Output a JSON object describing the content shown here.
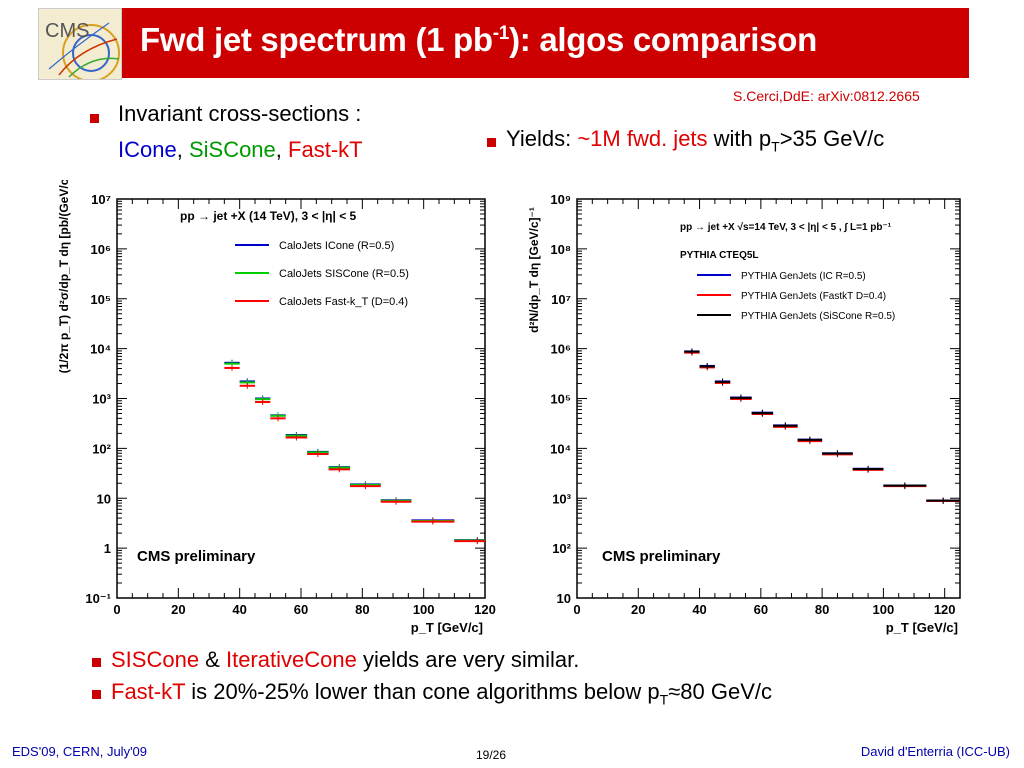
{
  "header": {
    "title_main": "Fwd jet spectrum (1 pb",
    "title_sup": "-1",
    "title_end": "): algos comparison",
    "logo_text": "CMS",
    "reference": "S.Cerci,DdE: arXiv:0812.2665"
  },
  "bullets": {
    "left_line1": "Invariant cross-sections :",
    "left_icone": "ICone",
    "left_sep1": ", ",
    "left_siscone": "SiSCone",
    "left_sep2": ", ",
    "left_fastkt": "Fast-kT",
    "yields_prefix": "Yields: ",
    "yields_red": "~1M fwd. jets",
    "yields_mid": " with p",
    "yields_sub": "T",
    "yields_end": ">35 GeV/c",
    "b1_red1": "SISCone",
    "b1_mid": " & ",
    "b1_red2": "IterativeCone",
    "b1_end": " yields are very similar.",
    "b2_red": "Fast-kT",
    "b2_mid": " is 20%-25% lower than cone algorithms below p",
    "b2_sub": "T",
    "b2_end": "≈80 GeV/c"
  },
  "footer": {
    "left": "EDS'09, CERN, July'09",
    "center": "19/26",
    "right": "David d'Enterria (ICC-UB)"
  },
  "colors": {
    "title_bg": "#cc0000",
    "accent_red": "#e00000",
    "icone_blue": "#0000cc",
    "siscone_green": "#009900",
    "footer_blue": "#0000aa"
  },
  "chart_data": [
    {
      "type": "scatter",
      "log_y": true,
      "grid": false,
      "legend_position": "top-right",
      "title": "pp → jet +X (14 TeV), 3 < |η| < 5",
      "xlabel": "p_T [GeV/c]",
      "ylabel": "(1/2π p_T) d²σ/dp_T dη [pb/(GeV/c)²]",
      "annotation": "CMS preliminary",
      "xlim": [
        0,
        120
      ],
      "ylim": [
        0.1,
        10000000
      ],
      "x_ticks": [
        "0",
        "20",
        "40",
        "60",
        "80",
        "100",
        "120"
      ],
      "y_ticks": [
        "10⁻¹",
        "1",
        "10",
        "10²",
        "10³",
        "10⁴",
        "10⁵",
        "10⁶",
        "10⁷"
      ],
      "bin_edges": [
        [
          35,
          40
        ],
        [
          40,
          45
        ],
        [
          45,
          50
        ],
        [
          50,
          55
        ],
        [
          55,
          62
        ],
        [
          62,
          69
        ],
        [
          69,
          76
        ],
        [
          76,
          86
        ],
        [
          86,
          96
        ],
        [
          96,
          110
        ],
        [
          110,
          125
        ]
      ],
      "series": [
        {
          "name": "CaloJets ICone (R=0.5)",
          "color": "#0000cc",
          "values": [
            5200,
            2200,
            1000,
            460,
            185,
            85,
            42,
            19,
            9.1,
            3.6,
            1.45
          ]
        },
        {
          "name": "CaloJets SISCone (R=0.5)",
          "color": "#00cc00",
          "values": [
            5000,
            2100,
            970,
            450,
            180,
            83,
            41,
            18.5,
            8.9,
            3.5,
            1.42
          ]
        },
        {
          "name": "CaloJets Fast-k_T (D=0.4)",
          "color": "#ff0000",
          "values": [
            4100,
            1800,
            850,
            400,
            165,
            77,
            38,
            17.5,
            8.5,
            3.4,
            1.38
          ]
        }
      ]
    },
    {
      "type": "scatter",
      "log_y": true,
      "grid": false,
      "legend_position": "top-right",
      "title": "pp → jet +X  √s=14 TeV, 3 < |η| < 5 , ∫ L=1 pb⁻¹",
      "subtitle": "PYTHIA CTEQ5L",
      "xlabel": "p_T [GeV/c]",
      "ylabel": "d²N/dp_T dη [GeV/c]⁻¹",
      "annotation": "CMS preliminary",
      "xlim": [
        0,
        125
      ],
      "ylim": [
        10,
        1000000000
      ],
      "x_ticks": [
        "0",
        "20",
        "40",
        "60",
        "80",
        "100",
        "120"
      ],
      "y_ticks": [
        "10",
        "10²",
        "10³",
        "10⁴",
        "10⁵",
        "10⁶",
        "10⁷",
        "10⁸",
        "10⁹"
      ],
      "bin_edges": [
        [
          35,
          40
        ],
        [
          40,
          45
        ],
        [
          45,
          50
        ],
        [
          50,
          57
        ],
        [
          57,
          64
        ],
        [
          64,
          72
        ],
        [
          72,
          80
        ],
        [
          80,
          90
        ],
        [
          90,
          100
        ],
        [
          100,
          114
        ],
        [
          114,
          125
        ]
      ],
      "series": [
        {
          "name": "PYTHIA GenJets (IC R=0.5)",
          "color": "#0000cc",
          "values": [
            880000,
            450000,
            220000,
            105000,
            52000,
            29000,
            15000,
            8000,
            3900,
            1800,
            900
          ]
        },
        {
          "name": "PYTHIA GenJets (FastkT D=0.4)",
          "color": "#ff0000",
          "values": [
            830000,
            420000,
            205000,
            98000,
            49000,
            27000,
            14000,
            7600,
            3700,
            1750,
            880
          ]
        },
        {
          "name": "PYTHIA GenJets (SiSCone R=0.5)",
          "color": "#000000",
          "values": [
            870000,
            440000,
            215000,
            103000,
            51000,
            28500,
            14800,
            7900,
            3850,
            1790,
            895
          ]
        }
      ]
    }
  ]
}
